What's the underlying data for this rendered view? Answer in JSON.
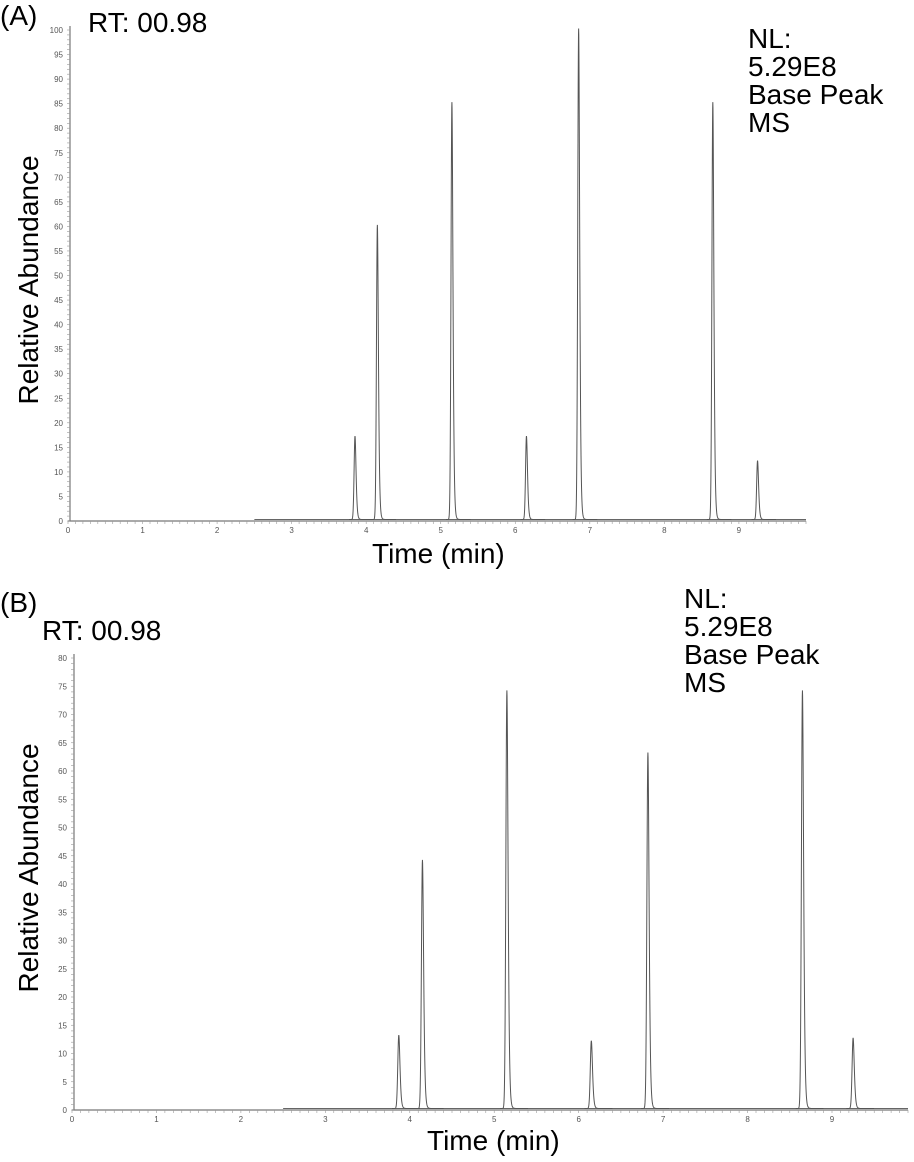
{
  "chart_data": [
    {
      "type": "line",
      "panel_label": "(A)",
      "rt_label": "RT: 00.98",
      "nl_lines": [
        "NL:",
        "5.29E8",
        "Base Peak",
        "MS"
      ],
      "xlabel": "Time (min)",
      "ylabel": "Relative Abundance",
      "xlim": [
        0,
        9.9
      ],
      "ylim": [
        0,
        100
      ],
      "xticks": [
        0,
        1,
        2,
        3,
        4,
        5,
        6,
        7,
        8,
        9
      ],
      "yticks": [
        0,
        5,
        10,
        15,
        20,
        25,
        30,
        35,
        40,
        45,
        50,
        55,
        60,
        65,
        70,
        75,
        80,
        85,
        90,
        95,
        100
      ],
      "peaks": [
        {
          "rt": 3.85,
          "abundance": 17
        },
        {
          "rt": 4.15,
          "abundance": 60
        },
        {
          "rt": 5.15,
          "abundance": 85
        },
        {
          "rt": 6.15,
          "abundance": 17
        },
        {
          "rt": 6.85,
          "abundance": 100
        },
        {
          "rt": 8.65,
          "abundance": 85
        },
        {
          "rt": 9.25,
          "abundance": 12
        }
      ],
      "grid": false
    },
    {
      "type": "line",
      "panel_label": "(B)",
      "rt_label": "RT: 00.98",
      "nl_lines": [
        "NL:",
        "5.29E8",
        "Base Peak",
        "MS"
      ],
      "xlabel": "Time (min)",
      "ylabel": "Relative Abundance",
      "xlim": [
        0,
        9.9
      ],
      "ylim": [
        0,
        80
      ],
      "xticks": [
        0,
        1,
        2,
        3,
        4,
        5,
        6,
        7,
        8,
        9
      ],
      "yticks": [
        0,
        5,
        10,
        15,
        20,
        25,
        30,
        35,
        40,
        45,
        50,
        55,
        60,
        65,
        70,
        75,
        80
      ],
      "peaks": [
        {
          "rt": 3.87,
          "abundance": 13
        },
        {
          "rt": 4.15,
          "abundance": 44
        },
        {
          "rt": 5.15,
          "abundance": 74
        },
        {
          "rt": 6.15,
          "abundance": 12
        },
        {
          "rt": 6.82,
          "abundance": 63
        },
        {
          "rt": 8.65,
          "abundance": 74
        },
        {
          "rt": 9.25,
          "abundance": 12.5
        }
      ],
      "grid": false
    }
  ]
}
